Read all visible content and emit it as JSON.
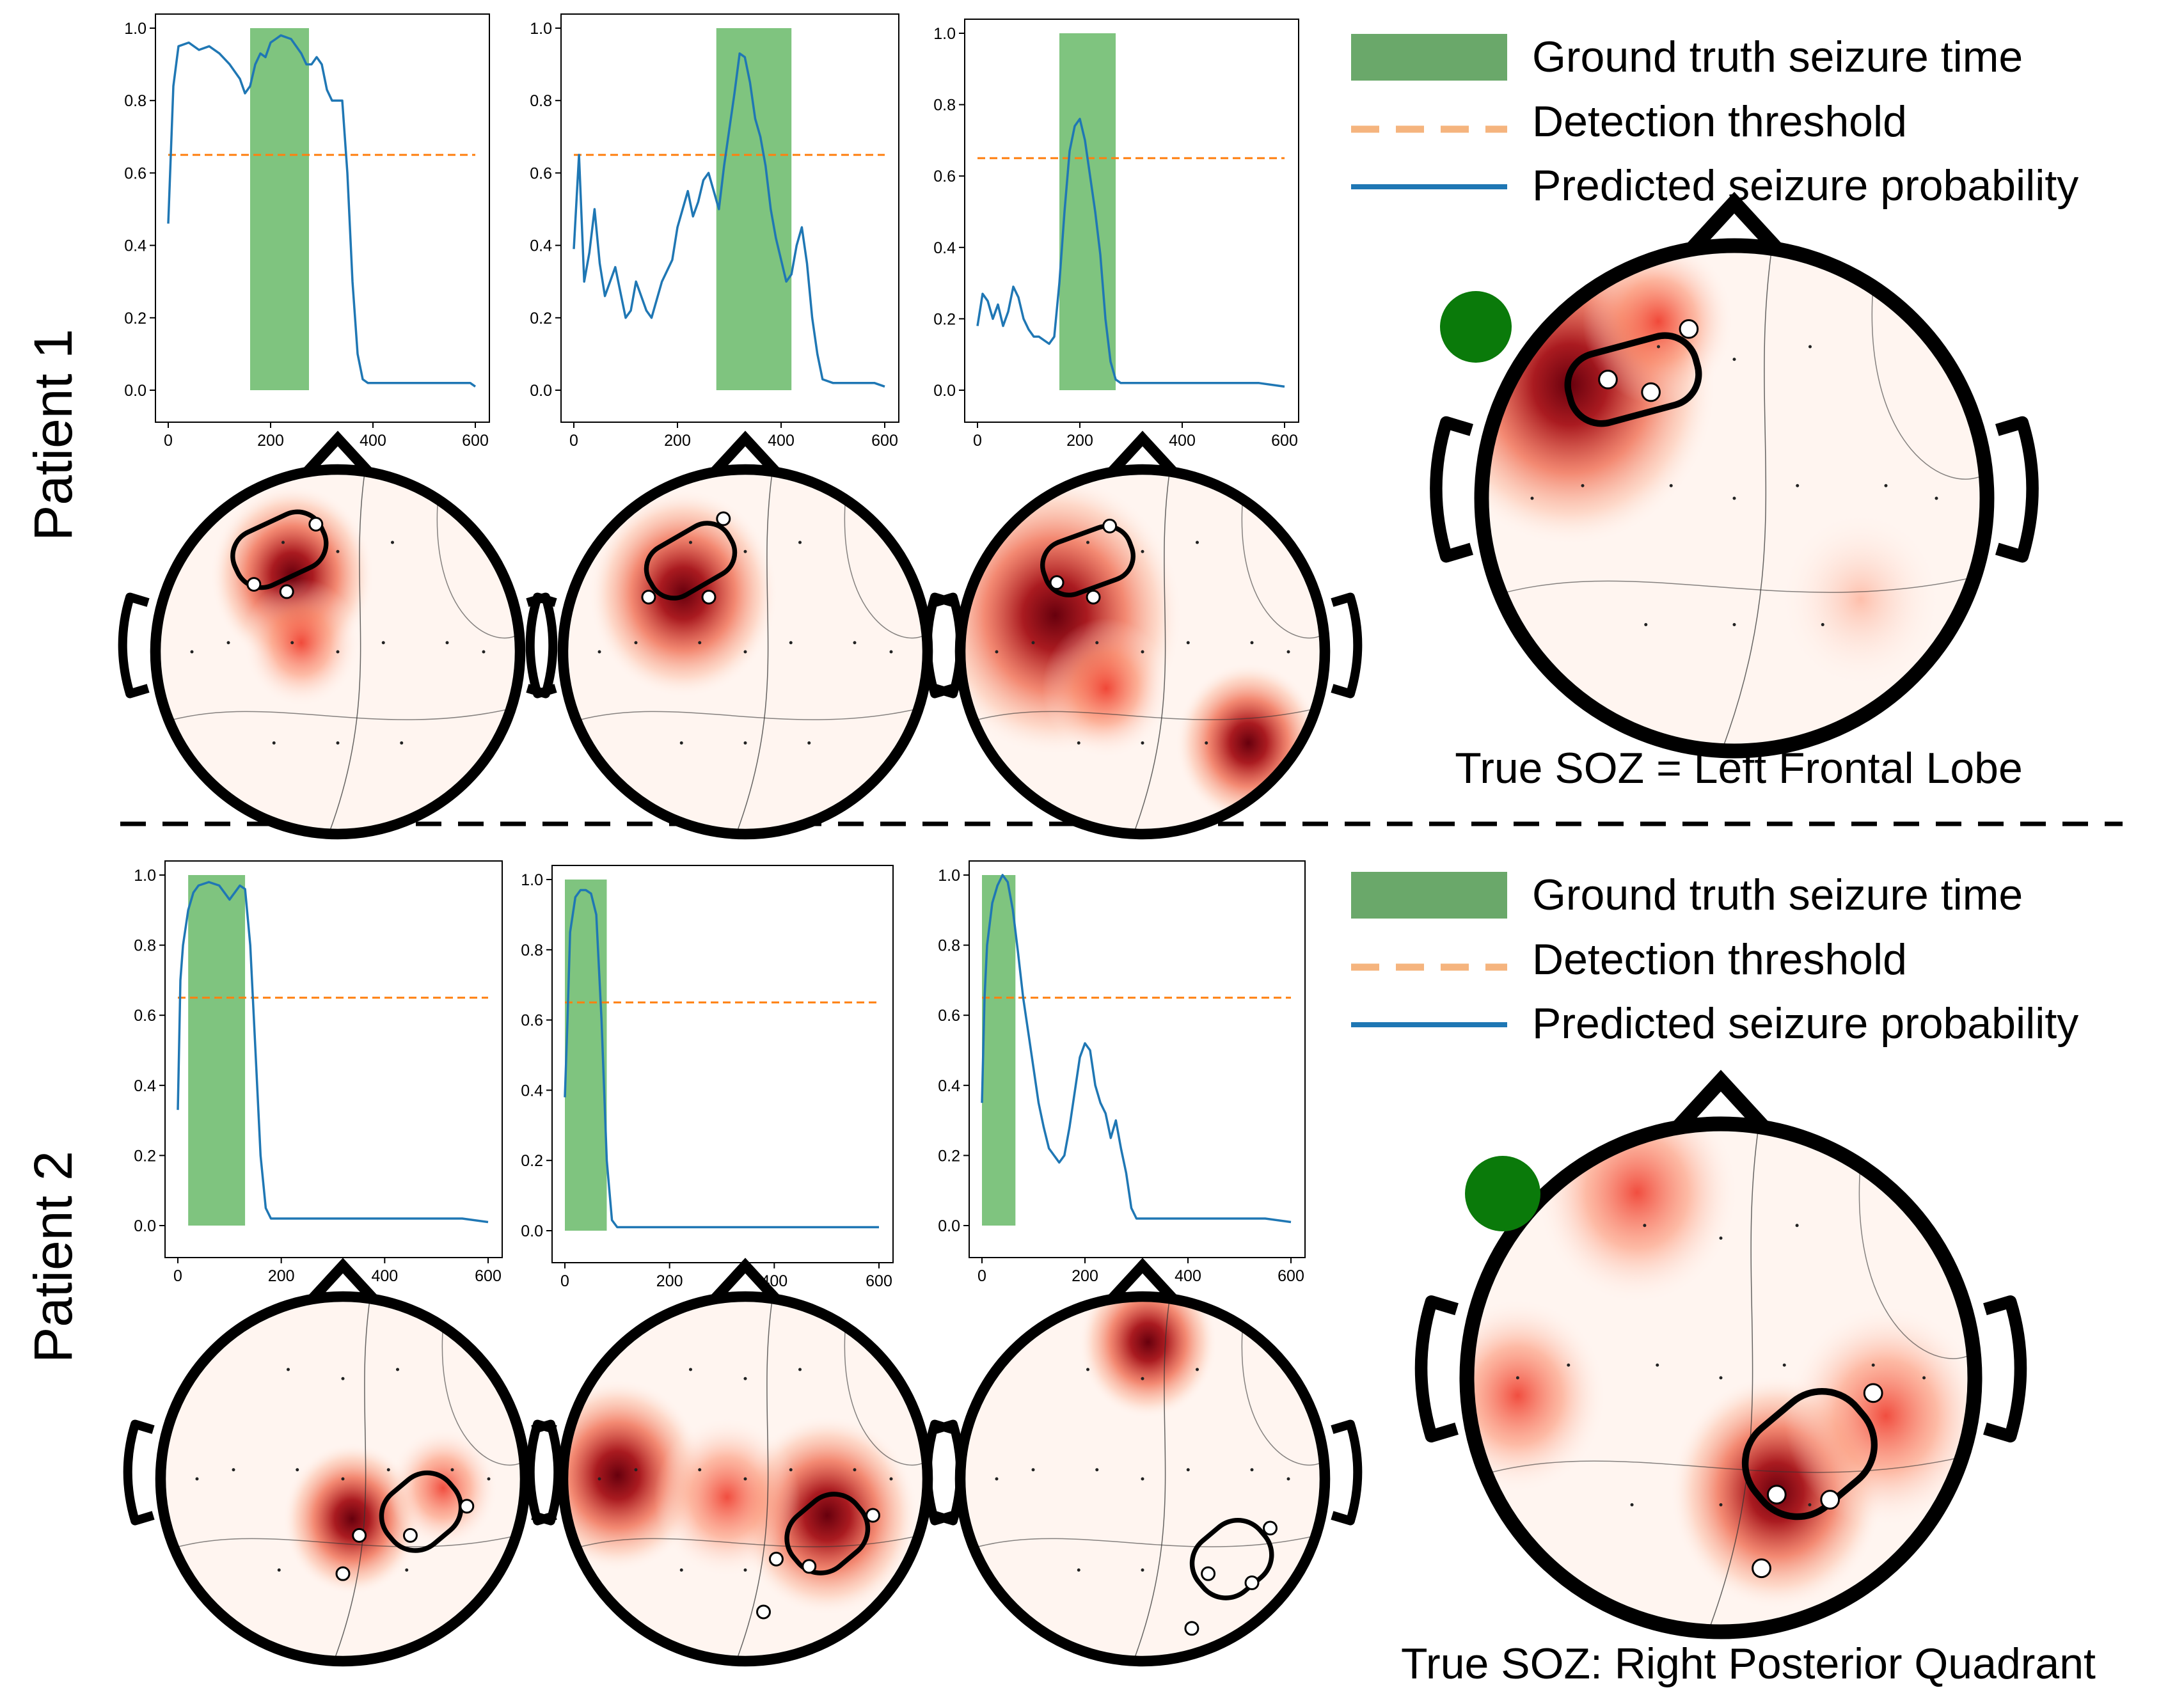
{
  "row_labels": [
    "Patient 1",
    "Patient 2"
  ],
  "legend": {
    "items": [
      {
        "label": "Ground truth seizure time",
        "kind": "patch",
        "color": "#6aa86a"
      },
      {
        "label": "Detection threshold",
        "kind": "dashed",
        "color": "#f5b47e"
      },
      {
        "label": "Predicted seizure probability",
        "kind": "line",
        "color": "#1f77b4"
      }
    ]
  },
  "captions": [
    "True SOZ = Left Frontal Lobe",
    "True SOZ: Right Posterior Quadrant"
  ],
  "colors": {
    "probability_line": "#1f77b4",
    "threshold": "#ff7f0e",
    "seizure_span": "#7fc47f",
    "soz_marker": "#0a7a0a",
    "head_outline": "#000000",
    "heatmap_hot": "#a50f15",
    "heatmap_warm": "#ef6548",
    "heatmap_light": "#fcbba1"
  },
  "chart_data": [
    {
      "type": "line",
      "patient": "Patient 1",
      "xlim": [
        0,
        600
      ],
      "ylim": [
        0,
        1
      ],
      "xticks": [
        0,
        200,
        400,
        600
      ],
      "yticks": [
        0.0,
        0.2,
        0.4,
        0.6,
        0.8,
        1.0
      ],
      "threshold": 0.65,
      "seizure_span": [
        160,
        275
      ],
      "x": [
        0,
        10,
        20,
        40,
        60,
        80,
        100,
        120,
        140,
        150,
        160,
        170,
        180,
        190,
        200,
        210,
        220,
        240,
        260,
        270,
        280,
        290,
        300,
        310,
        320,
        330,
        340,
        350,
        360,
        370,
        380,
        390,
        400,
        450,
        500,
        550,
        590,
        600
      ],
      "y": [
        0.46,
        0.84,
        0.95,
        0.96,
        0.94,
        0.95,
        0.93,
        0.9,
        0.86,
        0.82,
        0.84,
        0.9,
        0.93,
        0.92,
        0.96,
        0.97,
        0.98,
        0.97,
        0.93,
        0.9,
        0.9,
        0.92,
        0.9,
        0.83,
        0.8,
        0.8,
        0.8,
        0.6,
        0.3,
        0.1,
        0.03,
        0.02,
        0.02,
        0.02,
        0.02,
        0.02,
        0.02,
        0.01
      ]
    },
    {
      "type": "line",
      "patient": "Patient 1",
      "xlim": [
        0,
        600
      ],
      "ylim": [
        0,
        1
      ],
      "xticks": [
        0,
        200,
        400,
        600
      ],
      "yticks": [
        0.0,
        0.2,
        0.4,
        0.6,
        0.8,
        1.0
      ],
      "threshold": 0.65,
      "seizure_span": [
        275,
        420
      ],
      "x": [
        0,
        10,
        20,
        30,
        40,
        50,
        60,
        70,
        80,
        90,
        100,
        110,
        120,
        130,
        140,
        150,
        160,
        170,
        180,
        190,
        200,
        210,
        220,
        230,
        240,
        250,
        260,
        270,
        280,
        290,
        300,
        310,
        320,
        330,
        340,
        350,
        360,
        370,
        380,
        390,
        400,
        410,
        420,
        430,
        440,
        450,
        460,
        470,
        480,
        500,
        520,
        540,
        560,
        580,
        600
      ],
      "y": [
        0.39,
        0.65,
        0.3,
        0.38,
        0.5,
        0.35,
        0.26,
        0.3,
        0.34,
        0.27,
        0.2,
        0.22,
        0.3,
        0.26,
        0.22,
        0.2,
        0.25,
        0.3,
        0.33,
        0.36,
        0.45,
        0.5,
        0.55,
        0.48,
        0.52,
        0.58,
        0.6,
        0.55,
        0.5,
        0.62,
        0.72,
        0.82,
        0.93,
        0.92,
        0.85,
        0.75,
        0.7,
        0.62,
        0.5,
        0.42,
        0.36,
        0.3,
        0.32,
        0.4,
        0.45,
        0.35,
        0.2,
        0.1,
        0.03,
        0.02,
        0.02,
        0.02,
        0.02,
        0.02,
        0.01
      ]
    },
    {
      "type": "line",
      "patient": "Patient 1",
      "xlim": [
        0,
        600
      ],
      "ylim": [
        0,
        1
      ],
      "xticks": [
        0,
        200,
        400,
        600
      ],
      "yticks": [
        0.0,
        0.2,
        0.4,
        0.6,
        0.8,
        1.0
      ],
      "threshold": 0.65,
      "seizure_span": [
        160,
        270
      ],
      "x": [
        0,
        10,
        20,
        30,
        40,
        50,
        60,
        70,
        80,
        90,
        100,
        110,
        120,
        130,
        140,
        150,
        160,
        170,
        180,
        190,
        200,
        210,
        220,
        230,
        240,
        250,
        260,
        270,
        280,
        290,
        300,
        350,
        400,
        450,
        500,
        550,
        600
      ],
      "y": [
        0.18,
        0.27,
        0.25,
        0.2,
        0.24,
        0.18,
        0.22,
        0.29,
        0.26,
        0.2,
        0.17,
        0.15,
        0.15,
        0.14,
        0.13,
        0.15,
        0.3,
        0.5,
        0.67,
        0.74,
        0.76,
        0.7,
        0.6,
        0.5,
        0.38,
        0.2,
        0.08,
        0.03,
        0.02,
        0.02,
        0.02,
        0.02,
        0.02,
        0.02,
        0.02,
        0.02,
        0.01
      ]
    },
    {
      "type": "line",
      "patient": "Patient 2",
      "xlim": [
        0,
        600
      ],
      "ylim": [
        0,
        1
      ],
      "xticks": [
        0,
        200,
        400,
        600
      ],
      "yticks": [
        0.0,
        0.2,
        0.4,
        0.6,
        0.8,
        1.0
      ],
      "threshold": 0.65,
      "seizure_span": [
        20,
        130
      ],
      "x": [
        0,
        5,
        10,
        20,
        30,
        40,
        60,
        80,
        90,
        100,
        110,
        120,
        130,
        140,
        150,
        160,
        170,
        180,
        190,
        200,
        250,
        300,
        350,
        400,
        450,
        500,
        550,
        600
      ],
      "y": [
        0.33,
        0.7,
        0.8,
        0.9,
        0.95,
        0.97,
        0.98,
        0.97,
        0.95,
        0.93,
        0.95,
        0.97,
        0.96,
        0.8,
        0.5,
        0.2,
        0.05,
        0.02,
        0.02,
        0.02,
        0.02,
        0.02,
        0.02,
        0.02,
        0.02,
        0.02,
        0.02,
        0.01
      ]
    },
    {
      "type": "line",
      "patient": "Patient 2",
      "xlim": [
        0,
        600
      ],
      "ylim": [
        0,
        1
      ],
      "xticks": [
        0,
        200,
        400,
        600
      ],
      "yticks": [
        0.0,
        0.2,
        0.4,
        0.6,
        0.8,
        1.0
      ],
      "threshold": 0.65,
      "seizure_span": [
        0,
        80
      ],
      "x": [
        0,
        5,
        10,
        20,
        30,
        40,
        50,
        60,
        70,
        80,
        90,
        100,
        150,
        200,
        300,
        400,
        500,
        600
      ],
      "y": [
        0.38,
        0.6,
        0.85,
        0.95,
        0.97,
        0.97,
        0.96,
        0.9,
        0.6,
        0.2,
        0.03,
        0.01,
        0.01,
        0.01,
        0.01,
        0.01,
        0.01,
        0.01
      ]
    },
    {
      "type": "line",
      "patient": "Patient 2",
      "xlim": [
        0,
        600
      ],
      "ylim": [
        0,
        1
      ],
      "xticks": [
        0,
        200,
        400,
        600
      ],
      "yticks": [
        0.0,
        0.2,
        0.4,
        0.6,
        0.8,
        1.0
      ],
      "threshold": 0.65,
      "seizure_span": [
        0,
        65
      ],
      "x": [
        0,
        5,
        10,
        20,
        30,
        40,
        50,
        60,
        70,
        80,
        90,
        100,
        110,
        120,
        130,
        140,
        150,
        160,
        170,
        180,
        190,
        200,
        210,
        220,
        230,
        240,
        250,
        260,
        270,
        280,
        290,
        300,
        320,
        350,
        400,
        450,
        500,
        550,
        600
      ],
      "y": [
        0.35,
        0.65,
        0.8,
        0.92,
        0.97,
        1.0,
        0.98,
        0.9,
        0.78,
        0.65,
        0.55,
        0.45,
        0.35,
        0.28,
        0.22,
        0.2,
        0.18,
        0.2,
        0.28,
        0.38,
        0.48,
        0.52,
        0.5,
        0.4,
        0.35,
        0.32,
        0.25,
        0.3,
        0.22,
        0.15,
        0.05,
        0.02,
        0.02,
        0.02,
        0.02,
        0.02,
        0.02,
        0.02,
        0.01
      ]
    }
  ]
}
